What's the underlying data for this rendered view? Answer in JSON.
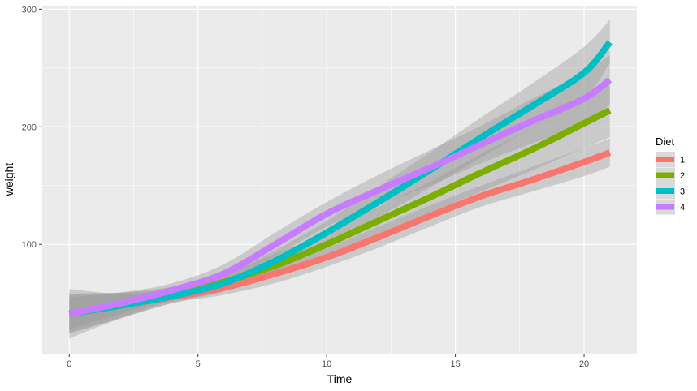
{
  "chart_data": {
    "type": "line",
    "xlabel": "Time",
    "ylabel": "weight",
    "xlim": [
      -1.05,
      22.05
    ],
    "ylim": [
      7,
      303
    ],
    "x_ticks": [
      0,
      5,
      10,
      15,
      20
    ],
    "y_ticks": [
      100,
      200,
      300
    ],
    "x_tick_labels": [
      "0",
      "5",
      "10",
      "15",
      "20"
    ],
    "y_tick_labels": [
      "100",
      "200",
      "300"
    ],
    "grid": true,
    "legend": {
      "title": "Diet",
      "position": "right"
    },
    "x": [
      0,
      2,
      4,
      6,
      8,
      10,
      12,
      14,
      16,
      18,
      20,
      21
    ],
    "series": [
      {
        "name": "1",
        "color": "#F8766D",
        "values": [
          41,
          48,
          55,
          63,
          75,
          89,
          106,
          124,
          141,
          155,
          170,
          178
        ],
        "lower": [
          20,
          37,
          50,
          57,
          67,
          81,
          97,
          115,
          132,
          145,
          158,
          166
        ],
        "upper": [
          62,
          58,
          61,
          69,
          83,
          97,
          115,
          133,
          150,
          166,
          182,
          190
        ]
      },
      {
        "name": "2",
        "color": "#7CAE00",
        "values": [
          41,
          49,
          58,
          68,
          82,
          100,
          120,
          140,
          161,
          181,
          203,
          214
        ],
        "lower": [
          25,
          38,
          52,
          61,
          73,
          90,
          108,
          127,
          145,
          163,
          182,
          191
        ],
        "upper": [
          58,
          59,
          64,
          75,
          92,
          110,
          132,
          153,
          177,
          199,
          224,
          237
        ]
      },
      {
        "name": "3",
        "color": "#00BFC4",
        "values": [
          41,
          48,
          56,
          67,
          86,
          110,
          136,
          163,
          191,
          218,
          246,
          272
        ],
        "lower": [
          24,
          37,
          50,
          60,
          77,
          100,
          123,
          148,
          174,
          199,
          224,
          254
        ],
        "upper": [
          58,
          59,
          62,
          74,
          95,
          120,
          149,
          178,
          208,
          237,
          268,
          291
        ]
      },
      {
        "name": "4",
        "color": "#C77CFF",
        "values": [
          41,
          50,
          61,
          75,
          100,
          126,
          146,
          165,
          185,
          205,
          224,
          240
        ],
        "lower": [
          28,
          41,
          55,
          67,
          90,
          115,
          133,
          150,
          169,
          186,
          202,
          219
        ],
        "upper": [
          55,
          59,
          67,
          83,
          110,
          136,
          159,
          180,
          201,
          224,
          246,
          261
        ]
      }
    ]
  }
}
